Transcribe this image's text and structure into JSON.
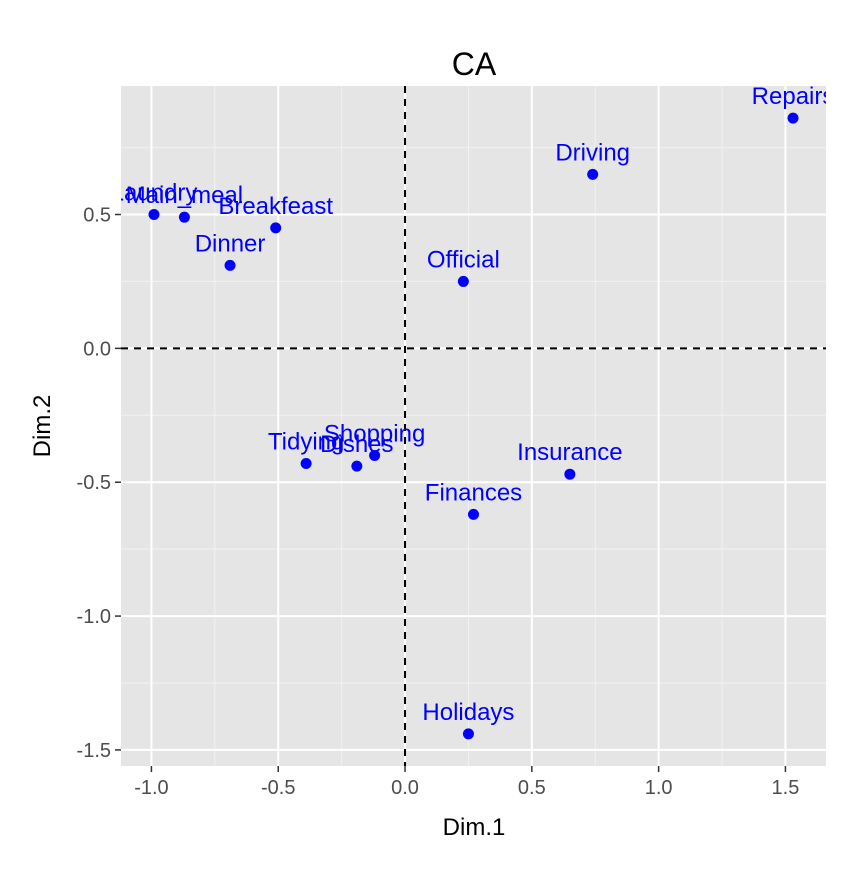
{
  "colors": {
    "panel_background": "#e5e5e5",
    "grid_major": "#ffffff",
    "grid_minor": "#f2f2f2",
    "points": "#0000ff",
    "labels": "#0000ff",
    "reference_lines": "#000000"
  },
  "chart_data": {
    "type": "scatter",
    "title": "CA",
    "xlabel": "Dim.1",
    "ylabel": "Dim.2",
    "xlim": [
      -1.12,
      1.66
    ],
    "ylim": [
      -1.56,
      0.98
    ],
    "xticks": [
      -1.0,
      -0.5,
      0.0,
      0.5,
      1.0,
      1.5
    ],
    "xtick_labels": [
      "-1.0",
      "-0.5",
      "0.0",
      "0.5",
      "1.0",
      "1.5"
    ],
    "yticks": [
      -1.5,
      -1.0,
      -0.5,
      0.0,
      0.5
    ],
    "ytick_labels": [
      "-1.5",
      "-1.0",
      "-0.5",
      "0.0",
      "0.5"
    ],
    "grid": true,
    "reference_lines": {
      "x": 0,
      "y": 0,
      "style": "dashed"
    },
    "points": [
      {
        "label": "Laundry",
        "x": -0.99,
        "y": 0.5
      },
      {
        "label": "Main_meal",
        "x": -0.87,
        "y": 0.49
      },
      {
        "label": "Breakfeast",
        "x": -0.51,
        "y": 0.45
      },
      {
        "label": "Dinner",
        "x": -0.69,
        "y": 0.31
      },
      {
        "label": "Tidying",
        "x": -0.39,
        "y": -0.43
      },
      {
        "label": "Dishes",
        "x": -0.19,
        "y": -0.44
      },
      {
        "label": "Shopping",
        "x": -0.12,
        "y": -0.4
      },
      {
        "label": "Official",
        "x": 0.23,
        "y": 0.25
      },
      {
        "label": "Driving",
        "x": 0.74,
        "y": 0.65
      },
      {
        "label": "Repairs",
        "x": 1.53,
        "y": 0.86
      },
      {
        "label": "Insurance",
        "x": 0.65,
        "y": -0.47
      },
      {
        "label": "Finances",
        "x": 0.27,
        "y": -0.62
      },
      {
        "label": "Holidays",
        "x": 0.25,
        "y": -1.44
      }
    ]
  }
}
